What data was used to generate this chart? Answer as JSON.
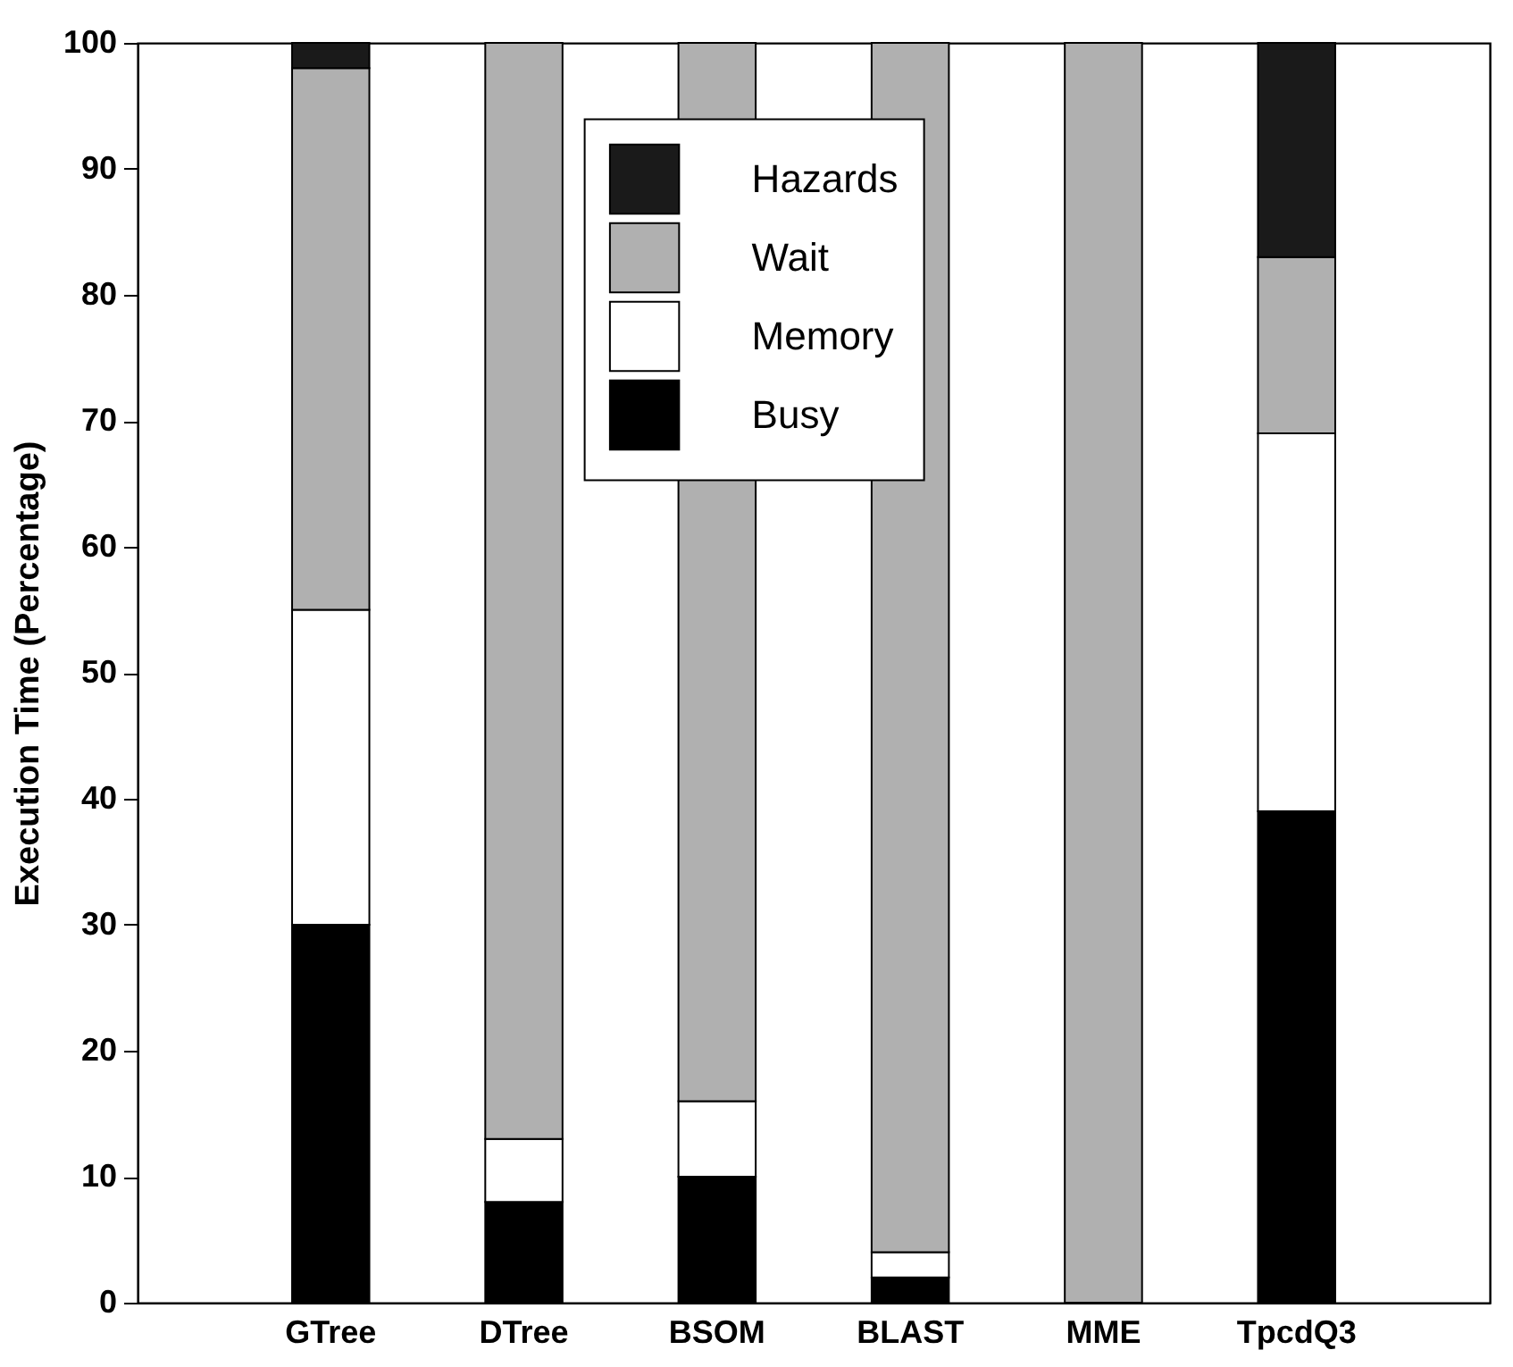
{
  "chart_data": {
    "type": "bar",
    "stacked": true,
    "ylabel": "Execution Time (Percentage)",
    "categories": [
      "GTree",
      "DTree",
      "BSOM",
      "BLAST",
      "MME",
      "TpcdQ3"
    ],
    "series": [
      {
        "name": "Busy",
        "color": "#000000",
        "values": [
          30,
          8,
          10,
          2,
          0,
          39
        ]
      },
      {
        "name": "Memory",
        "color": "#ffffff",
        "values": [
          25,
          5,
          6,
          2,
          0,
          30
        ]
      },
      {
        "name": "Wait",
        "color": "#b0b0b0",
        "values": [
          43,
          87,
          84,
          96,
          100,
          14
        ]
      },
      {
        "name": "Hazards",
        "color": "#1a1a1a",
        "values": [
          2,
          0,
          0,
          0,
          0,
          17
        ]
      }
    ],
    "ylim": [
      0,
      100
    ],
    "yticks": [
      0,
      10,
      20,
      30,
      40,
      50,
      60,
      70,
      80,
      90,
      100
    ],
    "grid": false,
    "legend": "top"
  }
}
